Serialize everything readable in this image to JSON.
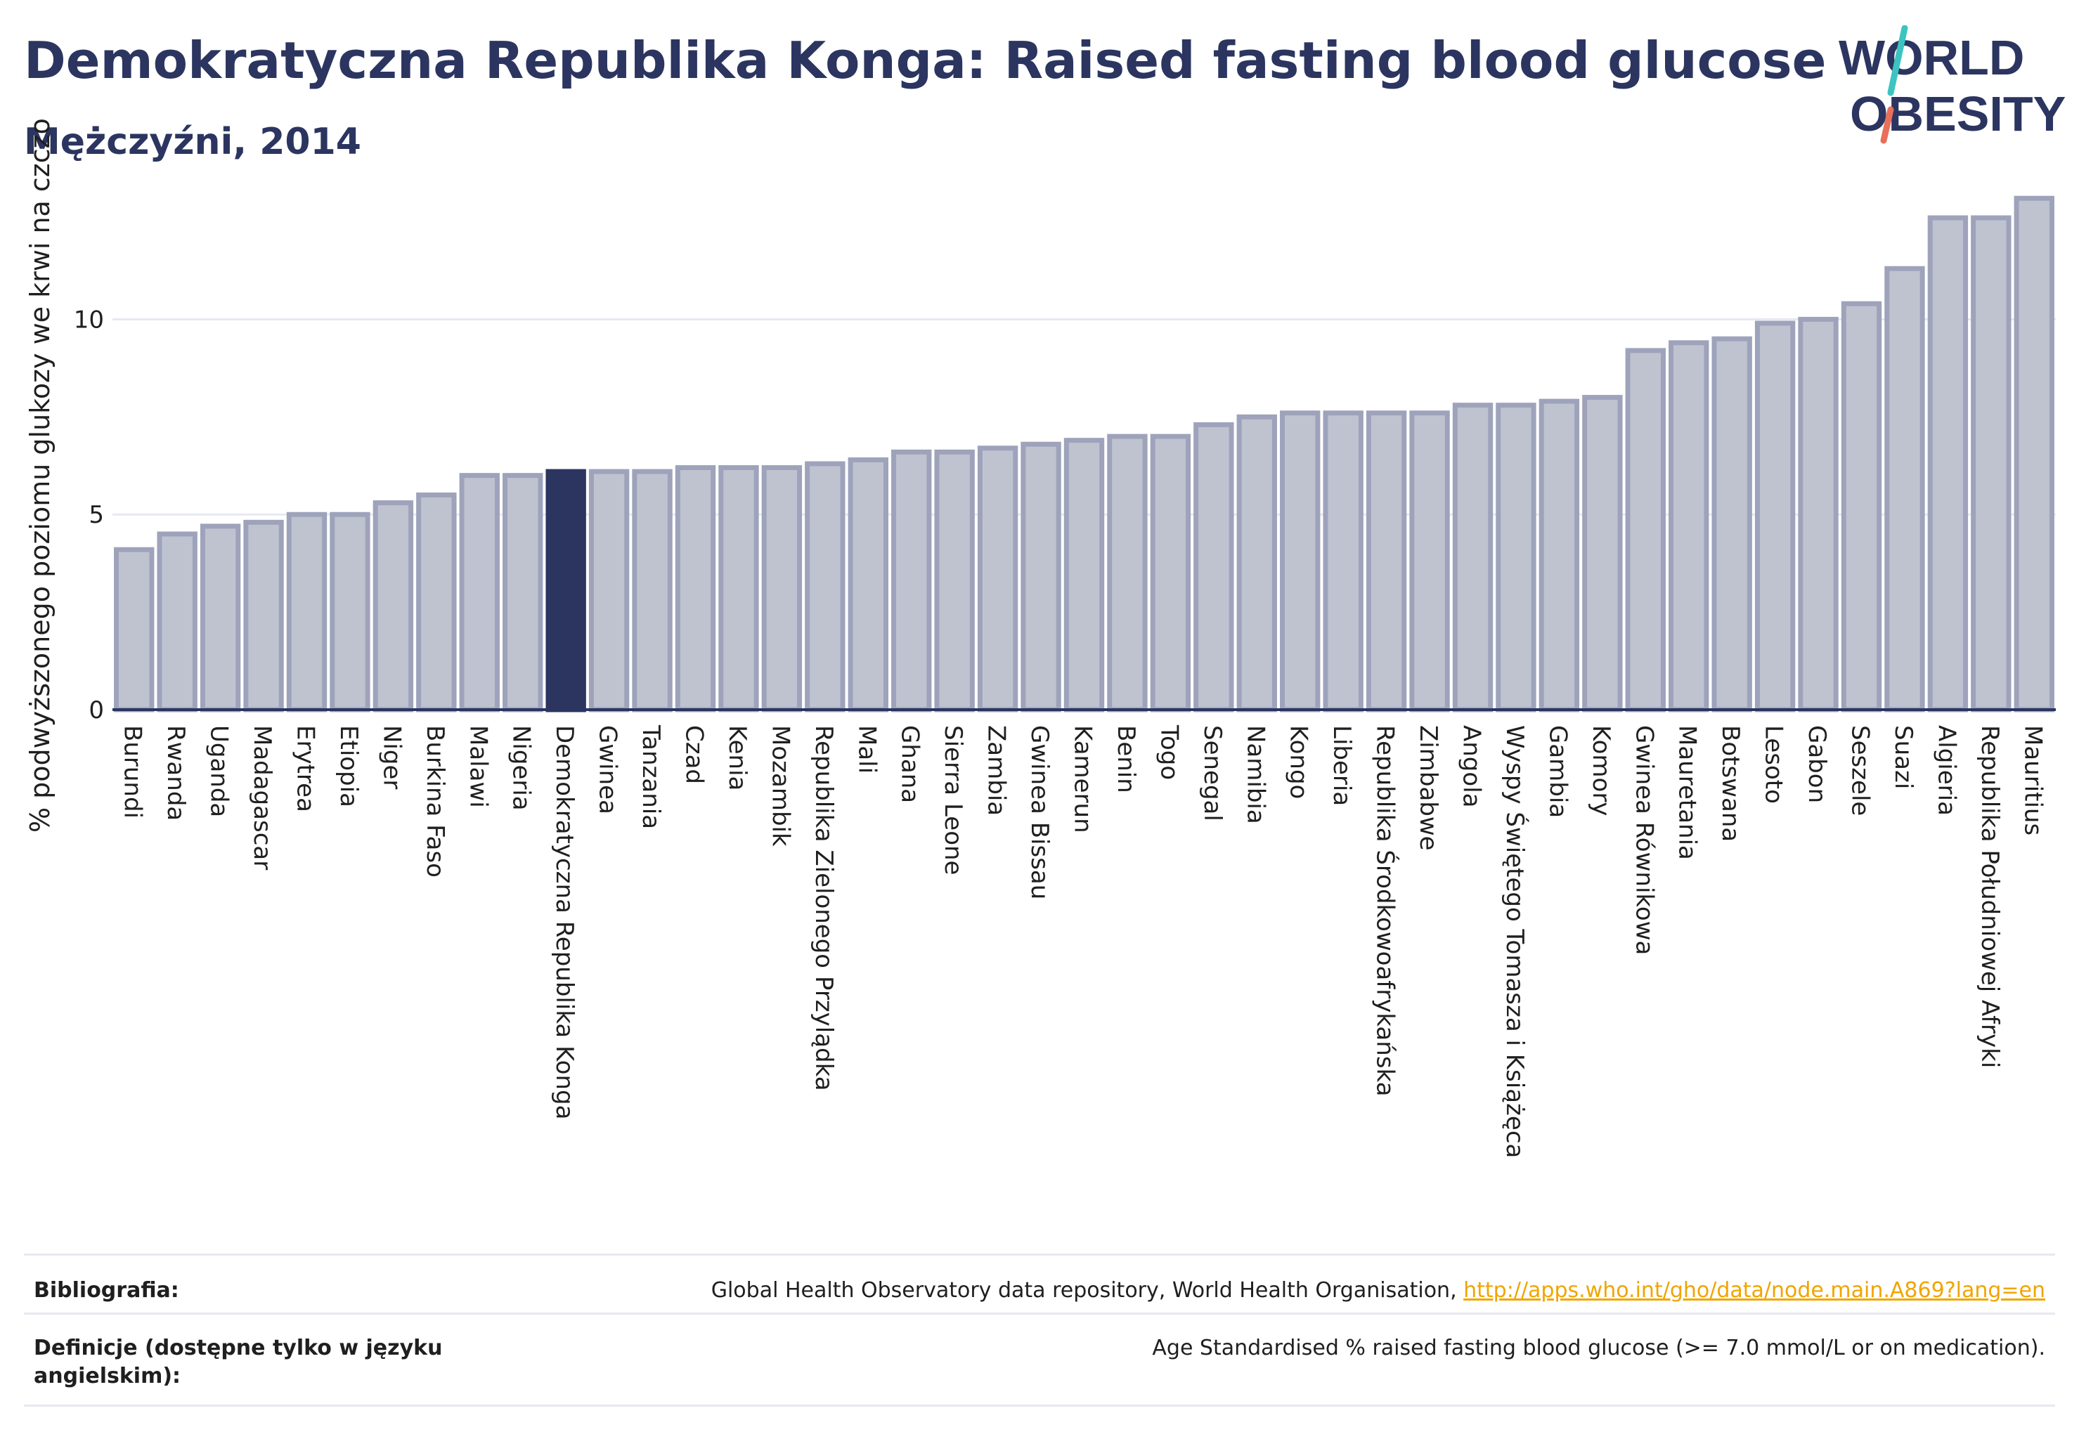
{
  "header": {
    "title": "Demokratyczna Republika Konga: Raised fasting blood glucose",
    "subtitle": "Mężczyźni, 2014"
  },
  "logo": {
    "line1": "WORLD",
    "line2": "OBESITY"
  },
  "colors": {
    "highlight": "#2b3560",
    "bar_fill": "#bfc3d0",
    "bar_stroke": "#9ea3bb",
    "axis": "#2b3560",
    "grid": "#e6e9f2",
    "logo_teal": "#3cc4c0",
    "logo_coral": "#e8705a",
    "link": "#f0a500"
  },
  "chart_data": {
    "type": "bar",
    "ylabel": "% podwyższonego poziomu glukozy we krwi na czczo",
    "ylim": [
      0,
      13.5
    ],
    "yticks": [
      0,
      5,
      10
    ],
    "grid": true,
    "highlight_category": "Demokratyczna Republika Konga",
    "categories": [
      "Burundi",
      "Rwanda",
      "Uganda",
      "Madagascar",
      "Erytrea",
      "Etiopia",
      "Niger",
      "Burkina Faso",
      "Malawi",
      "Nigeria",
      "Demokratyczna Republika Konga",
      "Gwinea",
      "Tanzania",
      "Czad",
      "Kenia",
      "Mozambik",
      "Republika Zielonego Przylądka",
      "Mali",
      "Ghana",
      "Sierra Leone",
      "Zambia",
      "Gwinea Bissau",
      "Kamerun",
      "Benin",
      "Togo",
      "Senegal",
      "Namibia",
      "Kongo",
      "Liberia",
      "Republika Środkowoafrykańska",
      "Zimbabwe",
      "Angola",
      "Wyspy Świętego Tomasza i Książęca",
      "Gambia",
      "Komory",
      "Gwinea Równikowa",
      "Mauretania",
      "Botswana",
      "Lesoto",
      "Gabon",
      "Seszele",
      "Suazi",
      "Algieria",
      "Republika Południowej Afryki",
      "Mauritius"
    ],
    "values": [
      4.1,
      4.5,
      4.7,
      4.8,
      5.0,
      5.0,
      5.3,
      5.5,
      6.0,
      6.0,
      6.1,
      6.1,
      6.1,
      6.2,
      6.2,
      6.2,
      6.3,
      6.4,
      6.6,
      6.6,
      6.7,
      6.8,
      6.9,
      7.0,
      7.0,
      7.3,
      7.5,
      7.6,
      7.6,
      7.6,
      7.6,
      7.8,
      7.8,
      7.9,
      8.0,
      9.2,
      9.4,
      9.5,
      9.9,
      10.0,
      10.4,
      11.3,
      12.6,
      12.6,
      13.1
    ]
  },
  "footer": {
    "bibliography_label": "Bibliografia:",
    "bibliography_text": "Global Health Observatory data repository, World Health Organisation, ",
    "bibliography_link": "http://apps.who.int/gho/data/node.main.A869?lang=en",
    "definitions_label": "Definicje (dostępne tylko w języku angielskim):",
    "definitions_text": "Age Standardised % raised fasting blood glucose (>= 7.0 mmol/L or on medication)."
  }
}
